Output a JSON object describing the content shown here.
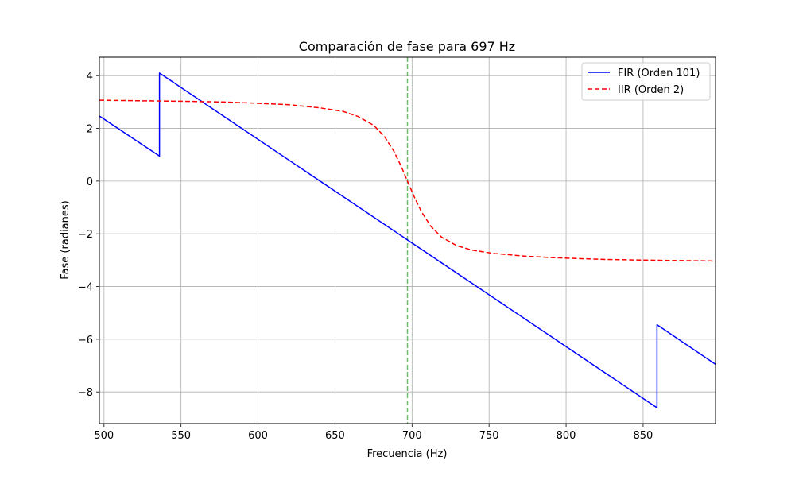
{
  "chart_data": {
    "type": "line",
    "title": "Comparación de fase para 697 Hz",
    "xlabel": "Frecuencia (Hz)",
    "ylabel": "Fase (radianes)",
    "xlim": [
      497,
      897
    ],
    "ylim": [
      -9.2,
      4.7
    ],
    "xticks": [
      500,
      550,
      600,
      650,
      700,
      750,
      800,
      850
    ],
    "yticks": [
      -8,
      -6,
      -4,
      -2,
      0,
      2,
      4
    ],
    "ytick_labels": [
      "−8",
      "−6",
      "−4",
      "−2",
      "0",
      "2",
      "4"
    ],
    "grid": true,
    "legend_position": "top-right",
    "marker_frequency": 697,
    "series": [
      {
        "name": "FIR (Orden 101)",
        "color": "#0000ff",
        "style": "solid",
        "points": [
          [
            497,
            2.47
          ],
          [
            536,
            0.95
          ],
          [
            536,
            4.1
          ],
          [
            859,
            -8.6
          ],
          [
            859,
            -5.45
          ],
          [
            897,
            -6.95
          ]
        ]
      },
      {
        "name": "IIR (Orden 2)",
        "color": "#ff0000",
        "style": "dashed",
        "points": [
          [
            497,
            3.07
          ],
          [
            520,
            3.05
          ],
          [
            550,
            3.03
          ],
          [
            580,
            3.0
          ],
          [
            600,
            2.95
          ],
          [
            620,
            2.9
          ],
          [
            640,
            2.78
          ],
          [
            655,
            2.65
          ],
          [
            665,
            2.45
          ],
          [
            675,
            2.12
          ],
          [
            682,
            1.7
          ],
          [
            688,
            1.15
          ],
          [
            693,
            0.55
          ],
          [
            697,
            0.0
          ],
          [
            701,
            -0.55
          ],
          [
            706,
            -1.15
          ],
          [
            712,
            -1.7
          ],
          [
            719,
            -2.12
          ],
          [
            729,
            -2.45
          ],
          [
            739,
            -2.62
          ],
          [
            754,
            -2.75
          ],
          [
            774,
            -2.85
          ],
          [
            794,
            -2.91
          ],
          [
            824,
            -2.97
          ],
          [
            854,
            -3.0
          ],
          [
            897,
            -3.03
          ]
        ]
      }
    ]
  }
}
